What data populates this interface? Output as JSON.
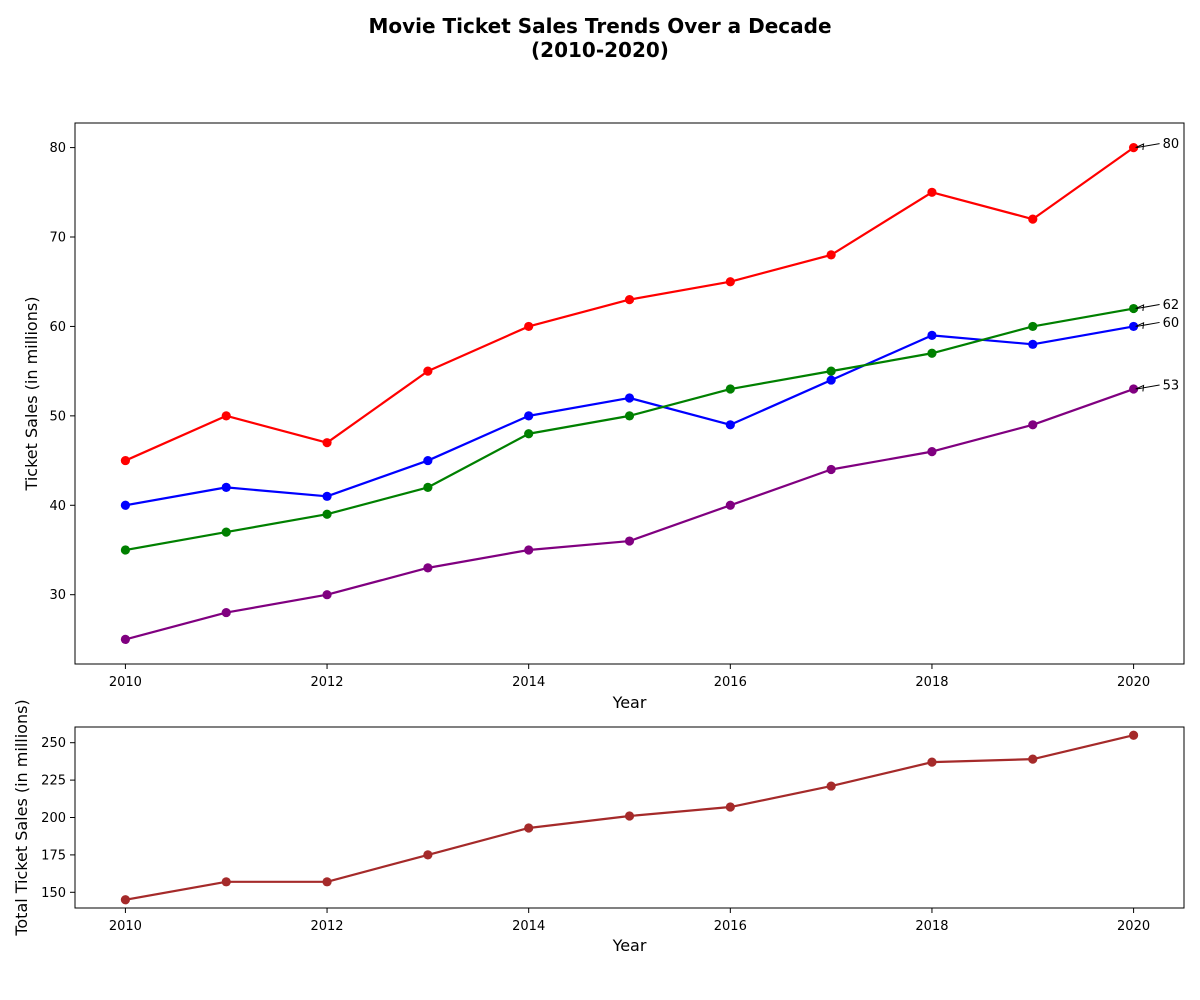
{
  "figure": {
    "title_line1": "Movie Ticket Sales Trends Over a Decade",
    "title_line2": "(2010-2020)"
  },
  "chart_data": [
    {
      "type": "line",
      "title": "",
      "xlabel": "Year",
      "ylabel": "Ticket Sales (in millions)",
      "x": [
        2010,
        2011,
        2012,
        2013,
        2014,
        2015,
        2016,
        2017,
        2018,
        2019,
        2020
      ],
      "xticks": [
        2010,
        2012,
        2014,
        2016,
        2018,
        2020
      ],
      "yticks": [
        30,
        40,
        50,
        60,
        70,
        80
      ],
      "xlim": [
        2009.5,
        2020.5
      ],
      "ylim": [
        22.25,
        82.75
      ],
      "grid": false,
      "series": [
        {
          "color": "#ff0000",
          "values": [
            45,
            50,
            47,
            55,
            60,
            63,
            65,
            68,
            75,
            72,
            80
          ],
          "annotation": "80"
        },
        {
          "color": "#0000ff",
          "values": [
            40,
            42,
            41,
            45,
            50,
            52,
            49,
            54,
            59,
            58,
            60
          ],
          "annotation": "60"
        },
        {
          "color": "#008000",
          "values": [
            35,
            37,
            39,
            42,
            48,
            50,
            53,
            55,
            57,
            60,
            62
          ],
          "annotation": "62"
        },
        {
          "color": "#800080",
          "values": [
            25,
            28,
            30,
            33,
            35,
            36,
            40,
            44,
            46,
            49,
            53
          ],
          "annotation": "53"
        }
      ]
    },
    {
      "type": "line",
      "title": "",
      "xlabel": "Year",
      "ylabel": "Total Ticket Sales (in millions)",
      "x": [
        2010,
        2011,
        2012,
        2013,
        2014,
        2015,
        2016,
        2017,
        2018,
        2019,
        2020
      ],
      "xticks": [
        2010,
        2012,
        2014,
        2016,
        2018,
        2020
      ],
      "yticks": [
        150,
        175,
        200,
        225,
        250
      ],
      "xlim": [
        2009.5,
        2020.5
      ],
      "ylim": [
        139.5,
        260.5
      ],
      "grid": false,
      "series": [
        {
          "color": "#a52a2a",
          "values": [
            145,
            157,
            157,
            175,
            193,
            201,
            207,
            221,
            237,
            239,
            255
          ]
        }
      ]
    }
  ]
}
